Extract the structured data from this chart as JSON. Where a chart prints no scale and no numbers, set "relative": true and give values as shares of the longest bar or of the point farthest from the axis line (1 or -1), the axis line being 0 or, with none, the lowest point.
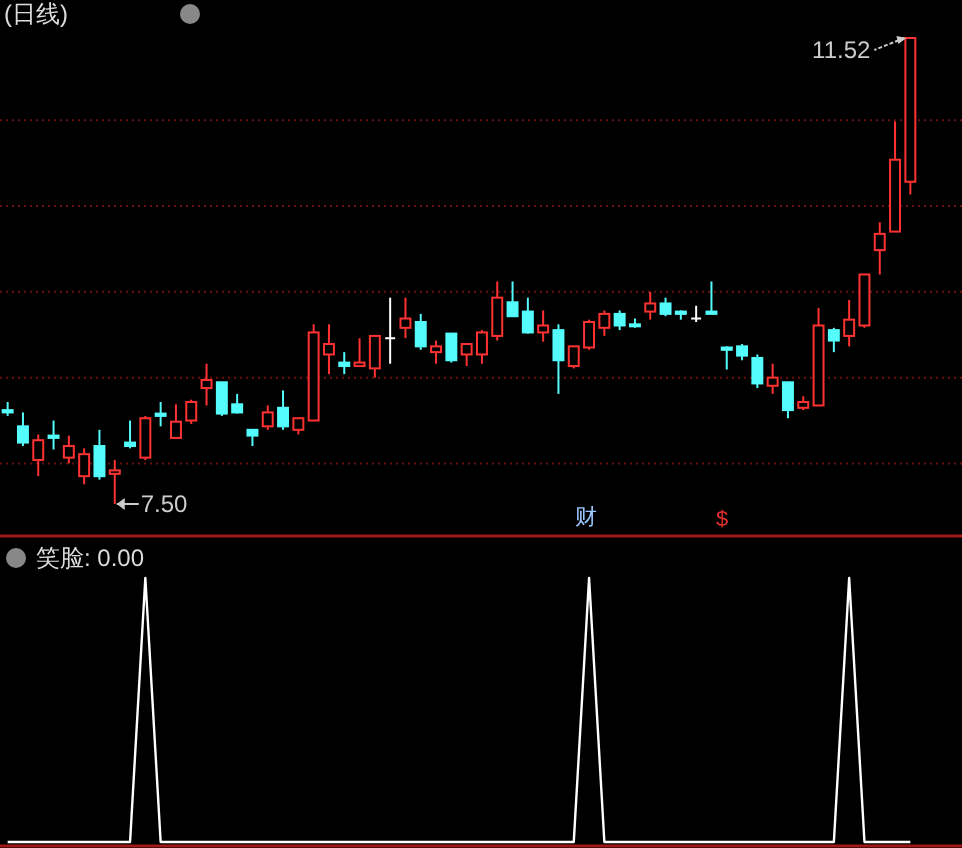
{
  "chart_data": [
    {
      "type": "candlestick",
      "title": "(日线)",
      "categories": [
        null,
        null,
        null,
        null,
        null,
        null,
        null,
        null,
        null,
        null,
        null,
        null,
        null,
        null,
        null,
        null,
        null,
        null,
        null,
        null,
        null,
        null,
        null,
        null,
        null,
        null,
        null,
        null,
        null,
        null,
        null,
        null,
        null,
        null,
        null,
        null,
        null,
        null,
        null,
        null,
        null,
        null,
        null,
        null,
        null,
        null,
        null,
        null,
        null,
        null,
        null,
        null,
        null,
        null,
        null,
        null,
        null,
        null,
        null,
        null
      ],
      "ohlc": [
        [
          8.31,
          8.38,
          8.26,
          8.29
        ],
        [
          8.17,
          8.29,
          8.0,
          8.03
        ],
        [
          7.88,
          8.1,
          7.74,
          8.05
        ],
        [
          8.09,
          8.22,
          7.97,
          8.07
        ],
        [
          7.9,
          8.09,
          7.85,
          8.0
        ],
        [
          7.74,
          7.98,
          7.67,
          7.93
        ],
        [
          8.0,
          8.14,
          7.71,
          7.74
        ],
        [
          7.76,
          7.88,
          7.5,
          7.79
        ],
        [
          8.03,
          8.22,
          7.98,
          8.0
        ],
        [
          7.9,
          8.26,
          7.88,
          8.24
        ],
        [
          8.28,
          8.38,
          8.17,
          8.26
        ],
        [
          8.07,
          8.36,
          8.07,
          8.21
        ],
        [
          8.22,
          8.4,
          8.19,
          8.38
        ],
        [
          8.5,
          8.71,
          8.35,
          8.57
        ],
        [
          8.55,
          8.55,
          8.26,
          8.28
        ],
        [
          8.36,
          8.45,
          8.28,
          8.29
        ],
        [
          8.14,
          8.14,
          8.0,
          8.09
        ],
        [
          8.17,
          8.35,
          8.14,
          8.29
        ],
        [
          8.33,
          8.48,
          8.14,
          8.17
        ],
        [
          8.14,
          8.24,
          8.1,
          8.24
        ],
        [
          8.22,
          9.05,
          8.22,
          8.98
        ],
        [
          8.79,
          9.05,
          8.62,
          8.88
        ],
        [
          8.72,
          8.81,
          8.62,
          8.69
        ],
        [
          8.69,
          8.93,
          8.69,
          8.72
        ],
        [
          8.67,
          8.95,
          8.59,
          8.95
        ],
        [
          8.93,
          9.28,
          8.71,
          8.93
        ],
        [
          9.02,
          9.28,
          8.93,
          9.1
        ],
        [
          9.07,
          9.14,
          8.83,
          8.86
        ],
        [
          8.81,
          8.91,
          8.71,
          8.86
        ],
        [
          8.97,
          8.97,
          8.72,
          8.74
        ],
        [
          8.79,
          8.88,
          8.69,
          8.88
        ],
        [
          8.79,
          9.0,
          8.71,
          8.98
        ],
        [
          8.95,
          9.42,
          8.91,
          9.28
        ],
        [
          9.24,
          9.42,
          9.12,
          9.12
        ],
        [
          9.16,
          9.28,
          8.97,
          8.98
        ],
        [
          8.98,
          9.17,
          8.9,
          9.04
        ],
        [
          9.0,
          9.05,
          8.45,
          8.74
        ],
        [
          8.69,
          8.86,
          8.67,
          8.86
        ],
        [
          8.85,
          9.09,
          8.83,
          9.07
        ],
        [
          9.02,
          9.17,
          8.95,
          9.14
        ],
        [
          9.14,
          9.17,
          9.0,
          9.04
        ],
        [
          9.05,
          9.1,
          9.02,
          9.04
        ],
        [
          9.16,
          9.33,
          9.09,
          9.23
        ],
        [
          9.23,
          9.28,
          9.12,
          9.14
        ],
        [
          9.16,
          9.17,
          9.09,
          9.14
        ],
        [
          9.1,
          9.21,
          9.07,
          9.1
        ],
        [
          9.16,
          9.42,
          9.14,
          9.14
        ],
        [
          8.85,
          8.86,
          8.66,
          8.83
        ],
        [
          8.86,
          8.88,
          8.74,
          8.78
        ],
        [
          8.76,
          8.79,
          8.5,
          8.54
        ],
        [
          8.52,
          8.71,
          8.45,
          8.59
        ],
        [
          8.55,
          8.55,
          8.24,
          8.31
        ],
        [
          8.33,
          8.43,
          8.31,
          8.38
        ],
        [
          8.35,
          9.19,
          8.35,
          9.04
        ],
        [
          9.0,
          9.02,
          8.81,
          8.91
        ],
        [
          8.95,
          9.26,
          8.86,
          9.09
        ],
        [
          9.04,
          9.48,
          9.02,
          9.48
        ],
        [
          9.69,
          9.93,
          9.48,
          9.83
        ],
        [
          9.85,
          10.8,
          9.85,
          10.47
        ],
        [
          10.28,
          11.52,
          10.17,
          11.52
        ]
      ],
      "colors": [
        "#54fcfc",
        "#54fcfc",
        "#ff3232",
        "#54fcfc",
        "#ff3232",
        "#ff3232",
        "#54fcfc",
        "#ff3232",
        "#54fcfc",
        "#ff3232",
        "#54fcfc",
        "#ff3232",
        "#ff3232",
        "#ff3232",
        "#54fcfc",
        "#54fcfc",
        "#54fcfc",
        "#ff3232",
        "#54fcfc",
        "#ff3232",
        "#ff3232",
        "#ff3232",
        "#54fcfc",
        "#ff3232",
        "#ff3232",
        "#ffffff",
        "#ff3232",
        "#54fcfc",
        "#ff3232",
        "#54fcfc",
        "#ff3232",
        "#ff3232",
        "#ff3232",
        "#54fcfc",
        "#54fcfc",
        "#ff3232",
        "#54fcfc",
        "#ff3232",
        "#ff3232",
        "#ff3232",
        "#54fcfc",
        "#54fcfc",
        "#ff3232",
        "#54fcfc",
        "#54fcfc",
        "#ffffff",
        "#54fcfc",
        "#54fcfc",
        "#54fcfc",
        "#54fcfc",
        "#ff3232",
        "#54fcfc",
        "#ff3232",
        "#ff3232",
        "#54fcfc",
        "#ff3232",
        "#ff3232",
        "#ff3232",
        "#ff3232",
        "#ff3232"
      ],
      "yticks": [
        {
          "value": 10.81,
          "label": null
        },
        {
          "value": 10.07,
          "label": null
        },
        {
          "value": 9.33,
          "label": null
        },
        {
          "value": 8.59,
          "label": null
        },
        {
          "value": 7.85,
          "label": null
        }
      ],
      "grid": "y",
      "annotations": [
        "11.52",
        "7.50",
        "财",
        "$"
      ]
    },
    {
      "type": "line",
      "title": "笑脸: 0.00",
      "relative": true,
      "categories": [
        null,
        null,
        null,
        null,
        null,
        null,
        null,
        null,
        null,
        null,
        null,
        null,
        null,
        null,
        null,
        null,
        null,
        null,
        null,
        null,
        null,
        null,
        null,
        null,
        null,
        null,
        null,
        null,
        null,
        null,
        null,
        null,
        null,
        null,
        null,
        null,
        null,
        null,
        null,
        null,
        null,
        null,
        null,
        null,
        null,
        null,
        null,
        null,
        null,
        null,
        null,
        null,
        null,
        null,
        null,
        null,
        null,
        null,
        null,
        null
      ],
      "series": [
        {
          "color": "#ffffff",
          "values": [
            0,
            0,
            0,
            0,
            0,
            0,
            0,
            0,
            0,
            1,
            0,
            0,
            0,
            0,
            0,
            0,
            0,
            0,
            0,
            0,
            0,
            0,
            0,
            0,
            0,
            0,
            0,
            0,
            0,
            0,
            0,
            0,
            0,
            0,
            0,
            0,
            0,
            0,
            1,
            0,
            0,
            0,
            0,
            0,
            0,
            0,
            0,
            0,
            0,
            0,
            0,
            0,
            0,
            0,
            0,
            1,
            0,
            0,
            0,
            0
          ]
        }
      ]
    }
  ]
}
